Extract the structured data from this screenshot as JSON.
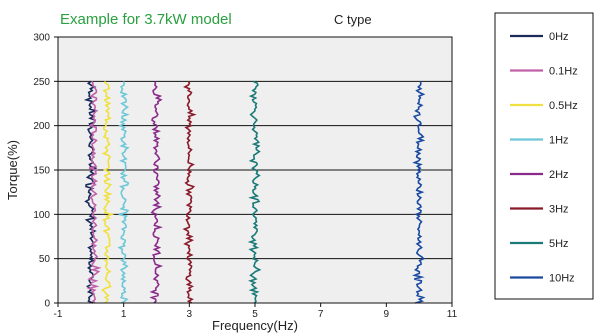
{
  "chart_data": {
    "type": "line",
    "title": "Example for 3.7kW model",
    "subtitle": "C type",
    "xlabel": "Frequency(Hz)",
    "ylabel": "Torque(%)",
    "xlim": [
      -1,
      11
    ],
    "ylim": [
      0,
      300
    ],
    "xticks": [
      -1,
      1,
      3,
      5,
      7,
      9,
      11
    ],
    "yticks": [
      0,
      50,
      100,
      150,
      200,
      250,
      300
    ],
    "y_gridlines": [
      50,
      100,
      150,
      200,
      250
    ],
    "grid": "horizontal",
    "legend_position": "right",
    "series": [
      {
        "name": "0Hz",
        "color": "#1a2a5a",
        "x_center": 0.0,
        "y_range": [
          0,
          250
        ]
      },
      {
        "name": "0.1Hz",
        "color": "#c060a8",
        "x_center": 0.1,
        "y_range": [
          0,
          250
        ]
      },
      {
        "name": "0.5Hz",
        "color": "#f0e040",
        "x_center": 0.5,
        "y_range": [
          0,
          250
        ]
      },
      {
        "name": "1Hz",
        "color": "#6cc8d8",
        "x_center": 1.0,
        "y_range": [
          0,
          250
        ]
      },
      {
        "name": "2Hz",
        "color": "#8a2a8a",
        "x_center": 2.0,
        "y_range": [
          0,
          250
        ]
      },
      {
        "name": "3Hz",
        "color": "#8a1a2a",
        "x_center": 3.0,
        "y_range": [
          0,
          250
        ]
      },
      {
        "name": "5Hz",
        "color": "#1a7a78",
        "x_center": 5.0,
        "y_range": [
          0,
          250
        ]
      },
      {
        "name": "10Hz",
        "color": "#1a4aa0",
        "x_center": 10.0,
        "y_range": [
          0,
          250
        ]
      }
    ]
  }
}
